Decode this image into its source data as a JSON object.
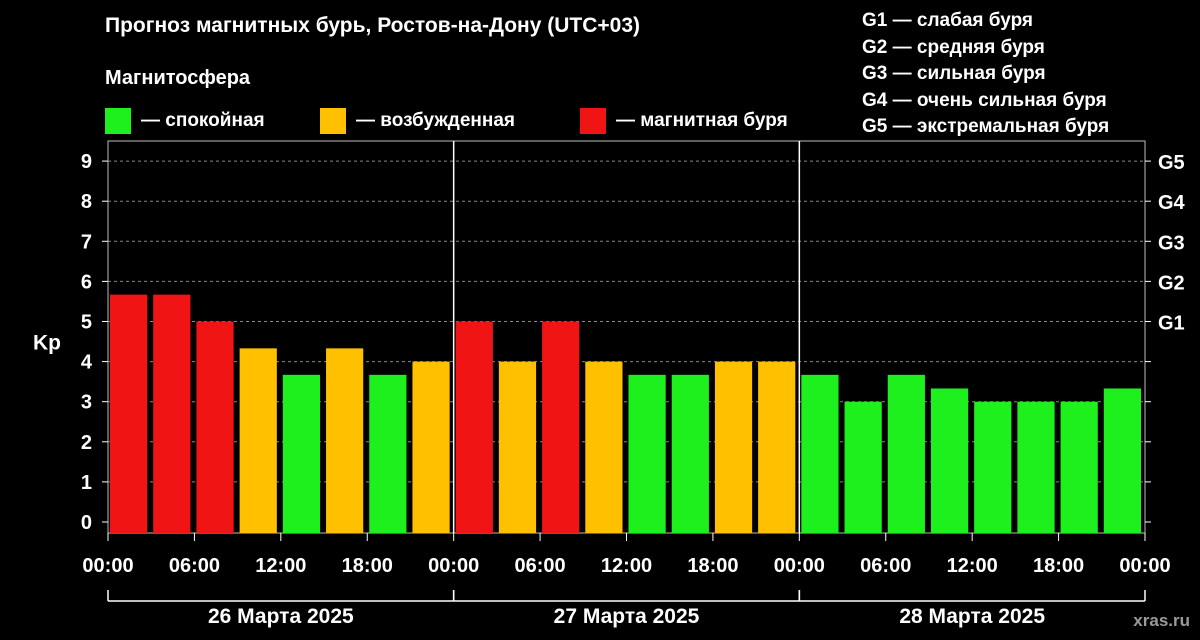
{
  "header": {
    "title": "Прогноз магнитных бурь, Ростов-на-Дону (UTC+03)",
    "subtitle": "Магнитосфера"
  },
  "legend": [
    {
      "label": "— спокойная",
      "color": "#1ef01e"
    },
    {
      "label": "— возбужденная",
      "color": "#ffc000"
    },
    {
      "label": "— магнитная буря",
      "color": "#f01414"
    }
  ],
  "g_legend": [
    "G1 — слабая буря",
    "G2 — средняя буря",
    "G3 — сильная буря",
    "G4 — очень сильная буря",
    "G5 — экстремальная буря"
  ],
  "watermark": "xras.ru",
  "colors": {
    "quiet": "#1ef01e",
    "active": "#ffc000",
    "storm": "#f01414",
    "background": "#000000"
  },
  "chart_data": {
    "type": "bar",
    "ylabel": "Kp",
    "ylim": [
      0,
      9
    ],
    "y_ticks": [
      0,
      1,
      2,
      3,
      4,
      5,
      6,
      7,
      8,
      9
    ],
    "g_ticks": [
      {
        "kp": 5,
        "label": "G1"
      },
      {
        "kp": 6,
        "label": "G2"
      },
      {
        "kp": 7,
        "label": "G3"
      },
      {
        "kp": 8,
        "label": "G4"
      },
      {
        "kp": 9,
        "label": "G5"
      }
    ],
    "grid": "horizontal dashed",
    "x_tick_labels": [
      "00:00",
      "06:00",
      "12:00",
      "18:00",
      "00:00",
      "06:00",
      "12:00",
      "18:00",
      "00:00",
      "06:00",
      "12:00",
      "18:00",
      "00:00"
    ],
    "days": [
      "26 Марта 2025",
      "27 Марта 2025",
      "28 Марта 2025"
    ],
    "values": [
      5.67,
      5.67,
      5,
      4.33,
      3.67,
      4.33,
      3.67,
      4,
      5,
      4,
      5,
      4,
      3.67,
      3.67,
      4,
      4,
      3.67,
      3,
      3.67,
      3.33,
      3,
      3,
      3,
      3.33
    ],
    "levels": [
      "storm",
      "storm",
      "storm",
      "active",
      "quiet",
      "active",
      "quiet",
      "active",
      "storm",
      "active",
      "storm",
      "active",
      "quiet",
      "quiet",
      "active",
      "active",
      "quiet",
      "quiet",
      "quiet",
      "quiet",
      "quiet",
      "quiet",
      "quiet",
      "quiet"
    ]
  }
}
